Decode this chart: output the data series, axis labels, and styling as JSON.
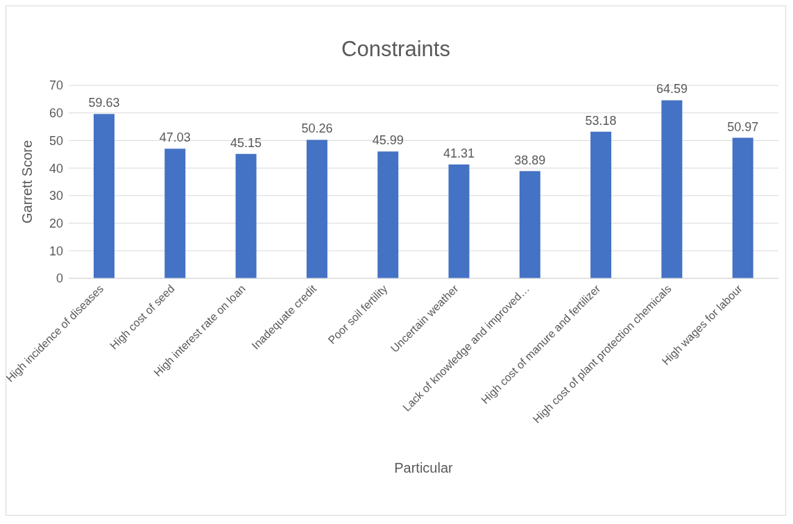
{
  "chart_data": {
    "type": "bar",
    "title": "Constraints",
    "xlabel": "Particular",
    "ylabel": "Garrett Score",
    "categories": [
      "High incidence of diseases",
      "High cost of seed",
      "High interest rate on loan",
      "Inadequate credit",
      "Poor soil fertility",
      "Uncertain weather",
      "Lack of knowledge and improved…",
      "High cost of manure and fertilizer",
      "High cost of plant protection chemicals",
      "High wages for labour"
    ],
    "values": [
      59.63,
      47.03,
      45.15,
      50.26,
      45.99,
      41.31,
      38.89,
      53.18,
      64.59,
      50.97
    ],
    "color": "#4472c4",
    "ylim": [
      0,
      70
    ],
    "yticks": [
      0,
      10,
      20,
      30,
      40,
      50,
      60,
      70
    ],
    "grid": "y",
    "data_labels": true
  }
}
